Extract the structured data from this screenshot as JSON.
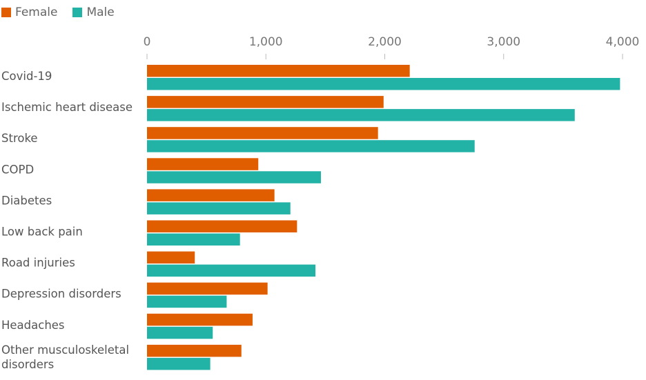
{
  "colors": {
    "female": "#e05e00",
    "male": "#22b2a6",
    "tick": "#bbbbbb"
  },
  "legend": [
    {
      "label": "Female",
      "color": "#e05e00"
    },
    {
      "label": "Male",
      "color": "#22b2a6"
    }
  ],
  "chart_data": {
    "type": "bar",
    "orientation": "horizontal",
    "title": "",
    "xlabel": "",
    "ylabel": "",
    "xlim": [
      0,
      4000
    ],
    "xticks": [
      0,
      1000,
      2000,
      3000,
      4000
    ],
    "xtick_labels": [
      "0",
      "1,000",
      "2,000",
      "3,000",
      "4,000"
    ],
    "grid": false,
    "legend_position": "top-left",
    "categories": [
      [
        "Covid-19"
      ],
      [
        "Ischemic heart disease"
      ],
      [
        "Stroke"
      ],
      [
        "COPD"
      ],
      [
        "Diabetes"
      ],
      [
        "Low back pain"
      ],
      [
        "Road injuries"
      ],
      [
        "Depression disorders"
      ],
      [
        "Headaches"
      ],
      [
        "Other musculoskeletal",
        "disorders"
      ]
    ],
    "series": [
      {
        "name": "Female",
        "values": [
          2210,
          1990,
          1943,
          936,
          1072,
          1262,
          402,
          1014,
          888,
          794
        ]
      },
      {
        "name": "Male",
        "values": [
          3979,
          3598,
          2756,
          1463,
          1206,
          782,
          1417,
          670,
          553,
          532
        ]
      }
    ]
  }
}
